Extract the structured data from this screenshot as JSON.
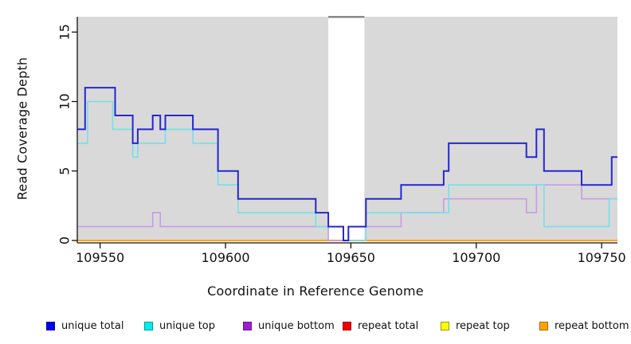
{
  "axes": {
    "x": {
      "title": "Coordinate in Reference Genome",
      "tick_values": [
        109550,
        109600,
        109650,
        109700,
        109750
      ],
      "range": [
        109540.9,
        109756.3
      ]
    },
    "y": {
      "title": "Read Coverage Depth",
      "tick_values": [
        0,
        5,
        10,
        15
      ],
      "range": [
        0,
        16.1
      ]
    }
  },
  "legend": {
    "items": [
      {
        "label": "unique total",
        "swatch": "#0000ee",
        "border": "#0000aa"
      },
      {
        "label": "unique top",
        "swatch": "#00eeee",
        "border": "#009999"
      },
      {
        "label": "unique bottom",
        "swatch": "#9922cc",
        "border": "#661199"
      },
      {
        "label": "repeat total",
        "swatch": "#ee0000",
        "border": "#990000"
      },
      {
        "label": "repeat top",
        "swatch": "#ffff00",
        "border": "#999900"
      },
      {
        "label": "repeat bottom",
        "swatch": "#ffa500",
        "border": "#aa6600"
      }
    ]
  },
  "chart_data": {
    "type": "line",
    "subtype": "step",
    "title": "",
    "xlabel": "Coordinate in Reference Genome",
    "ylabel": "Read Coverage Depth",
    "xlim": [
      109540.9,
      109756.3
    ],
    "ylim": [
      0,
      16.1
    ],
    "panel_bg": "#d9d9d9",
    "grid": false,
    "legend_position": "bottom",
    "highlight_region": {
      "x0": 109641,
      "x1": 109655.4,
      "color": "#ffffff",
      "cap_color": "#8a8a8a"
    },
    "series": [
      {
        "name": "unique total",
        "color": "#2727ce",
        "width": 2,
        "steps": [
          [
            109540.9,
            8
          ],
          [
            109544,
            11
          ],
          [
            109556,
            9
          ],
          [
            109563,
            7
          ],
          [
            109565,
            8
          ],
          [
            109571,
            9
          ],
          [
            109574,
            8
          ],
          [
            109576,
            9
          ],
          [
            109587,
            8
          ],
          [
            109597,
            5
          ],
          [
            109605,
            3
          ],
          [
            109636,
            2
          ],
          [
            109641,
            1
          ],
          [
            109647,
            0
          ],
          [
            109649,
            1
          ],
          [
            109656,
            3
          ],
          [
            109670,
            4
          ],
          [
            109687,
            5
          ],
          [
            109689,
            7
          ],
          [
            109720,
            6
          ],
          [
            109724,
            8
          ],
          [
            109727,
            5
          ],
          [
            109742,
            4
          ],
          [
            109754,
            6
          ]
        ]
      },
      {
        "name": "unique top",
        "color": "#77dfe8",
        "width": 1.6,
        "steps": [
          [
            109540.9,
            7
          ],
          [
            109545,
            10
          ],
          [
            109555,
            8
          ],
          [
            109563,
            6
          ],
          [
            109565,
            7
          ],
          [
            109576,
            8
          ],
          [
            109587,
            7
          ],
          [
            109597,
            4
          ],
          [
            109605,
            2
          ],
          [
            109636,
            1
          ],
          [
            109647,
            0
          ],
          [
            109656,
            2
          ],
          [
            109689,
            4
          ],
          [
            109727,
            1
          ],
          [
            109753,
            3
          ]
        ]
      },
      {
        "name": "unique bottom",
        "color": "#c79ce3",
        "width": 1.6,
        "steps": [
          [
            109540.9,
            1
          ],
          [
            109571,
            2
          ],
          [
            109574,
            1
          ],
          [
            109641,
            0
          ],
          [
            109649,
            1
          ],
          [
            109670,
            2
          ],
          [
            109687,
            3
          ],
          [
            109720,
            2
          ],
          [
            109724,
            4
          ],
          [
            109742,
            3
          ]
        ]
      },
      {
        "name": "repeat total",
        "color": "#cc2222",
        "width": 1.6,
        "steps": [
          [
            109540.9,
            0
          ]
        ]
      },
      {
        "name": "repeat top",
        "color": "#eeee22",
        "width": 1.6,
        "steps": [
          [
            109540.9,
            0
          ]
        ]
      },
      {
        "name": "repeat bottom",
        "color": "#ffa022",
        "width": 2,
        "steps": [
          [
            109540.9,
            0
          ]
        ]
      }
    ],
    "draw_order": [
      "repeat total",
      "repeat top",
      "repeat bottom",
      "unique bottom",
      "unique top",
      "unique total"
    ]
  }
}
